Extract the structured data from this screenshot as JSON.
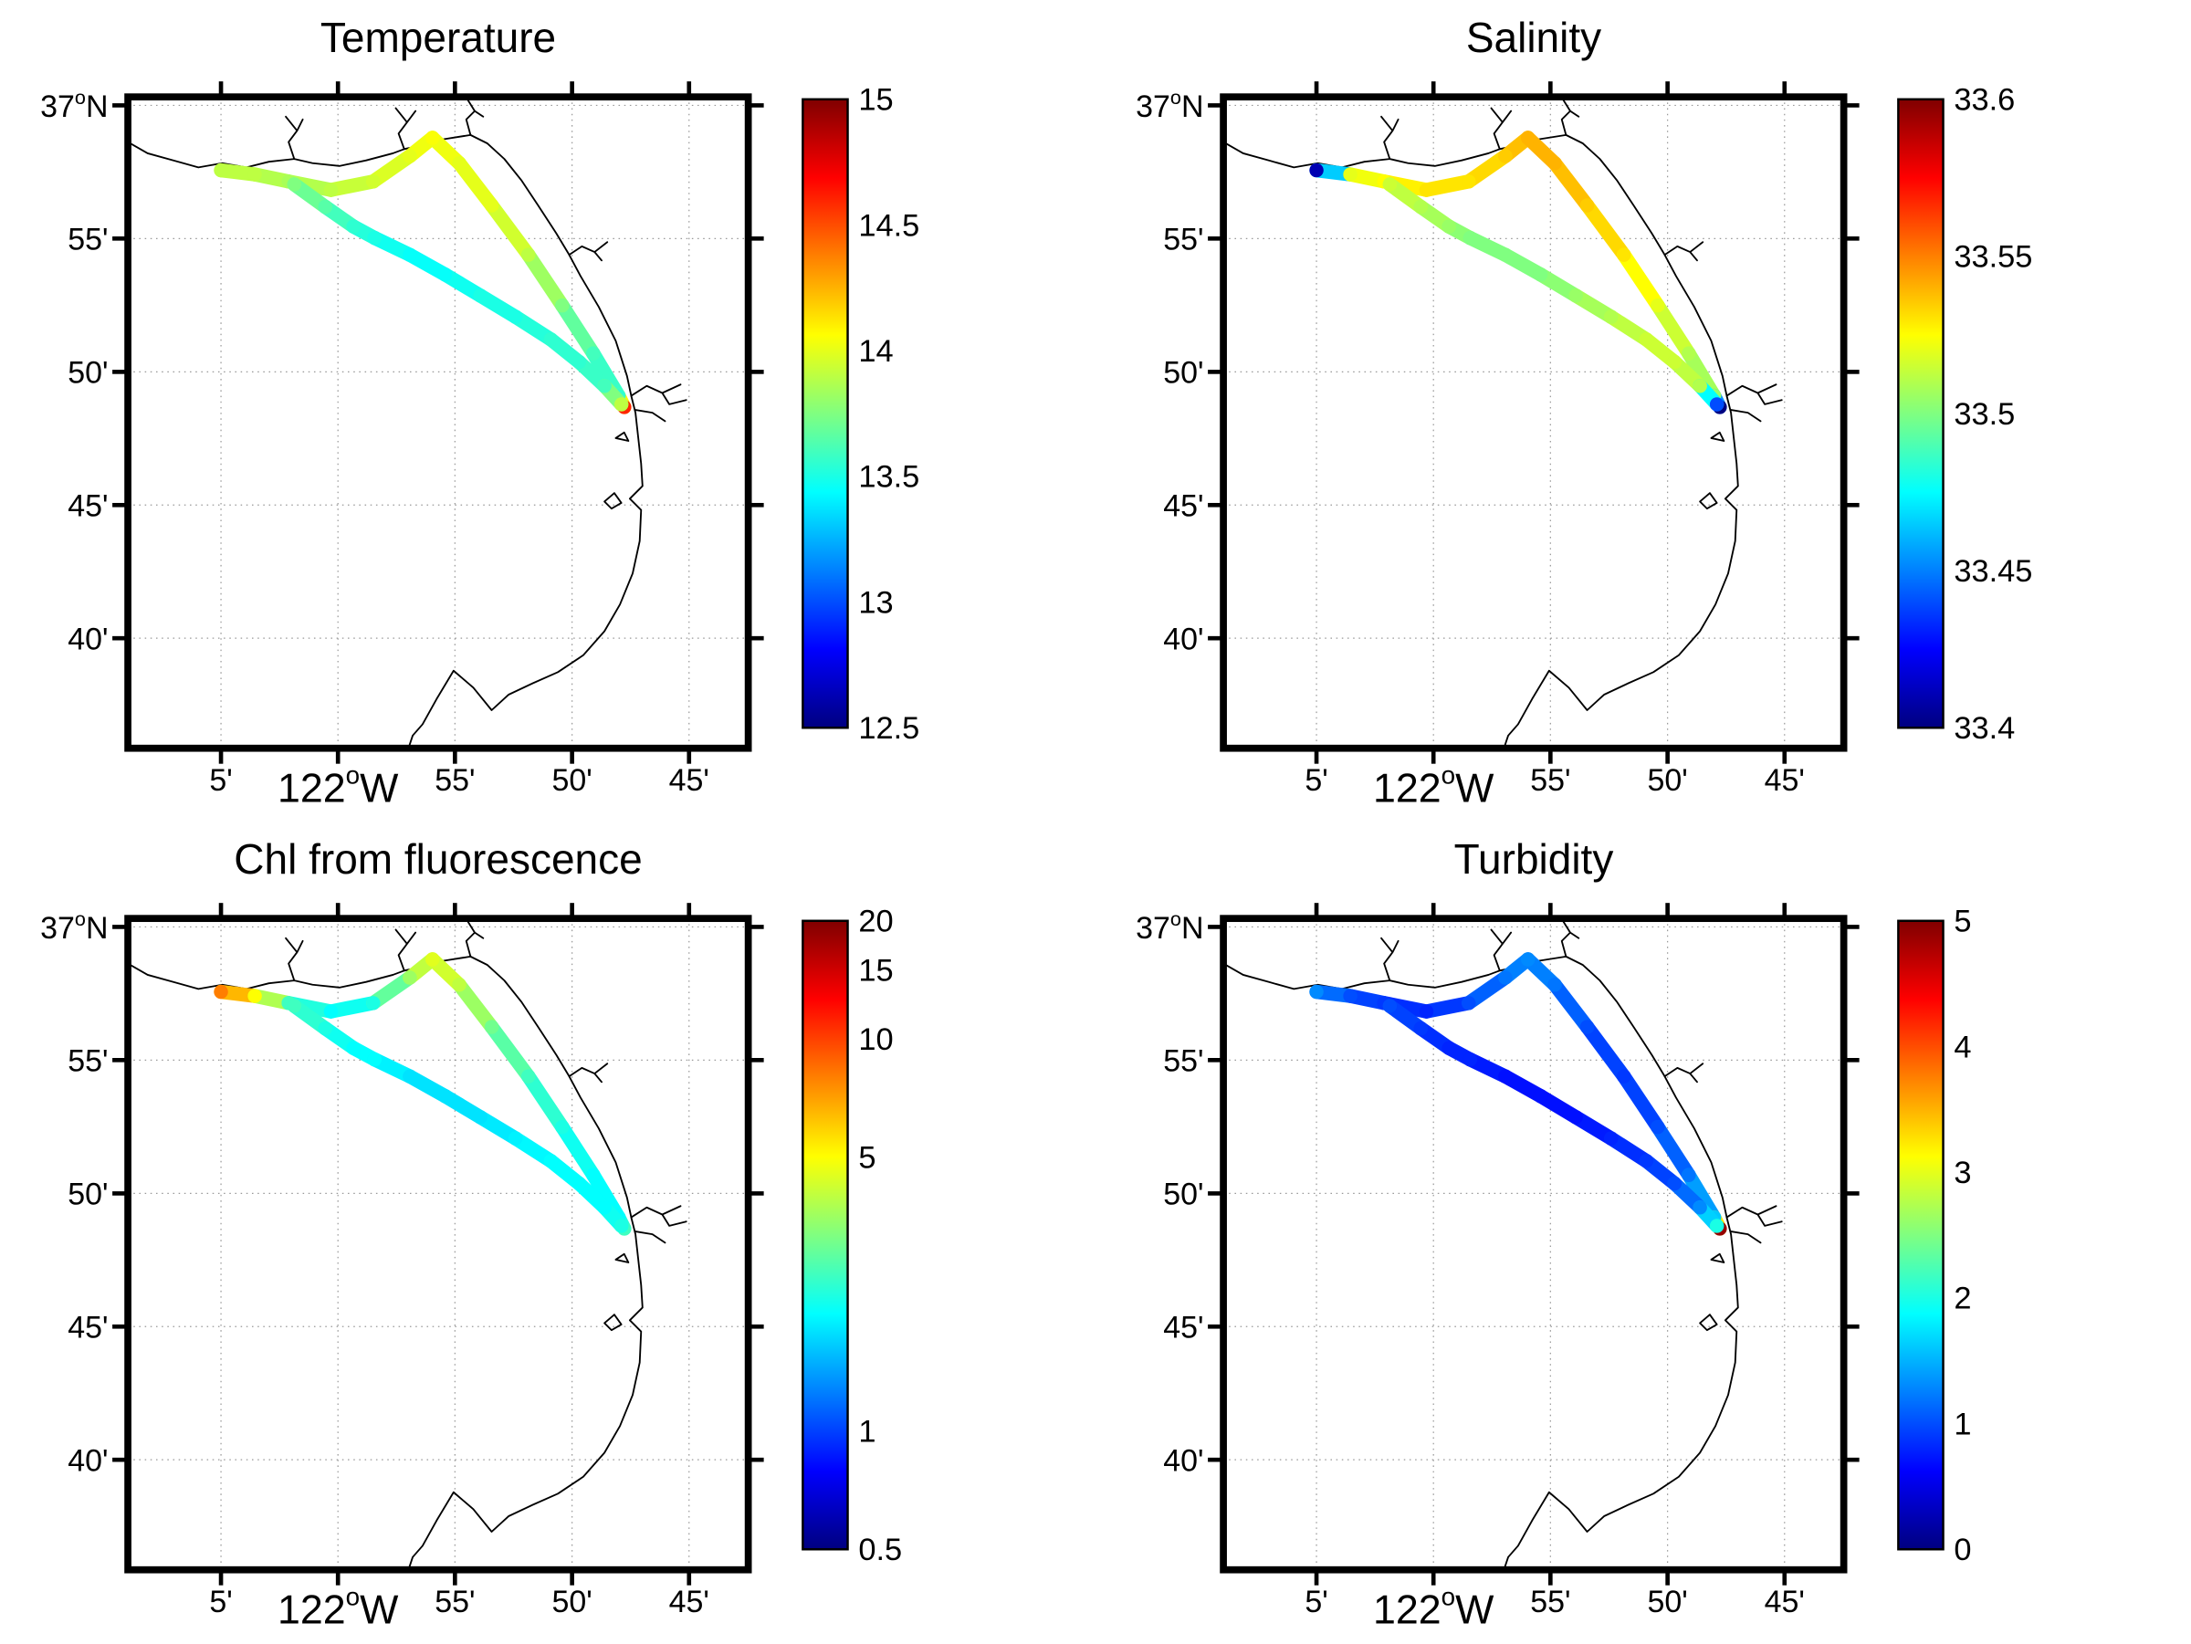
{
  "figure": {
    "background": "#ffffff"
  },
  "chart_data": {
    "type": "scatter",
    "layout": "2x2 geographic track panels (Monterey Bay survey, colored ship track with jet colormap colorbars)",
    "map_bounds": {
      "lon_min": -122.1496,
      "lon_max": -121.7078,
      "lat_min": 36.5979,
      "lat_max": 37.0053
    },
    "grid": true,
    "axes": {
      "x": [
        {
          "v": -122.0833,
          "label": "5'"
        },
        {
          "v": -122.0,
          "p": "122",
          "sup": "o",
          "s": "W"
        },
        {
          "v": -121.9167,
          "label": "55'"
        },
        {
          "v": -121.8333,
          "label": "50'"
        },
        {
          "v": -121.75,
          "label": "45'"
        }
      ],
      "y": [
        {
          "v": 37.0,
          "p": "37",
          "sup": "o",
          "s": "N"
        },
        {
          "v": 36.9167,
          "label": "55'"
        },
        {
          "v": 36.8333,
          "label": "50'"
        },
        {
          "v": 36.75,
          "label": "45'"
        },
        {
          "v": 36.6667,
          "label": "40'"
        }
      ]
    },
    "track": {
      "legs": [
        {
          "name": "north-leg",
          "points": [
            [
              -122.0833,
              36.9594
            ],
            [
              -122.0592,
              36.9568
            ],
            [
              -122.0351,
              36.9524
            ],
            [
              -122.005,
              36.9471
            ],
            [
              -121.9749,
              36.9524
            ],
            [
              -121.9488,
              36.9683
            ],
            [
              -121.9327,
              36.9797
            ],
            [
              -121.9136,
              36.9638
            ],
            [
              -121.8905,
              36.9374
            ],
            [
              -121.8644,
              36.9065
            ],
            [
              -121.8403,
              36.8748
            ],
            [
              -121.8182,
              36.8448
            ],
            [
              -121.8001,
              36.8183
            ],
            [
              -121.7961,
              36.8113
            ]
          ]
        },
        {
          "name": "diagonal-leg",
          "points": [
            [
              -122.0311,
              36.9506
            ],
            [
              -122.009,
              36.9365
            ],
            [
              -121.9889,
              36.9242
            ],
            [
              -121.9739,
              36.9171
            ],
            [
              -121.9488,
              36.9065
            ],
            [
              -121.9237,
              36.8942
            ],
            [
              -121.8986,
              36.881
            ],
            [
              -121.8735,
              36.8677
            ],
            [
              -121.8484,
              36.8536
            ],
            [
              -121.8283,
              36.8395
            ],
            [
              -121.8102,
              36.8245
            ],
            [
              -121.7982,
              36.813
            ]
          ]
        }
      ]
    },
    "panels": [
      {
        "id": "temperature",
        "title": "Temperature",
        "scale": "linear",
        "vmin": 12.5,
        "vmax": 15,
        "colorbar_ticks": [
          {
            "v": 15,
            "label": "15"
          },
          {
            "v": 14.5,
            "label": "14.5"
          },
          {
            "v": 14,
            "label": "14"
          },
          {
            "v": 13.5,
            "label": "13.5"
          },
          {
            "v": 13,
            "label": "13"
          },
          {
            "v": 12.5,
            "label": "12.5"
          }
        ],
        "values_by_leg": [
          [
            13.9,
            13.9,
            13.85,
            13.9,
            13.95,
            14.0,
            14.05,
            14.0,
            14.0,
            13.9,
            13.75,
            13.6,
            13.55,
            14.6
          ],
          [
            13.75,
            13.65,
            13.55,
            13.5,
            13.45,
            13.45,
            13.5,
            13.5,
            13.55,
            13.55,
            13.6,
            13.9
          ]
        ]
      },
      {
        "id": "salinity",
        "title": "Salinity",
        "scale": "linear",
        "vmin": 33.4,
        "vmax": 33.6,
        "colorbar_ticks": [
          {
            "v": 33.6,
            "label": "33.6"
          },
          {
            "v": 33.55,
            "label": "33.55"
          },
          {
            "v": 33.5,
            "label": "33.5"
          },
          {
            "v": 33.45,
            "label": "33.45"
          },
          {
            "v": 33.4,
            "label": "33.4"
          }
        ],
        "values_by_leg": [
          [
            33.41,
            33.52,
            33.525,
            33.53,
            33.53,
            33.535,
            33.54,
            33.54,
            33.535,
            33.53,
            33.52,
            33.51,
            33.505,
            33.4
          ],
          [
            33.515,
            33.51,
            33.505,
            33.5,
            33.5,
            33.5,
            33.505,
            33.51,
            33.515,
            33.515,
            33.51,
            33.44
          ]
        ]
      },
      {
        "id": "chl",
        "title": "Chl from fluorescence",
        "scale": "log",
        "vmin": 0.5,
        "vmax": 20,
        "colorbar_ticks": [
          {
            "v": 20,
            "label": "20"
          },
          {
            "v": 15,
            "label": "15"
          },
          {
            "v": 10,
            "label": "10"
          },
          {
            "v": 5,
            "label": "5"
          },
          {
            "v": 1,
            "label": "1"
          },
          {
            "v": 0.5,
            "label": "0.5"
          }
        ],
        "values_by_leg": [
          [
            8.0,
            5.0,
            2.5,
            2.0,
            2.2,
            3.5,
            4.5,
            4.0,
            3.0,
            2.5,
            2.2,
            2.0,
            2.0,
            2.5
          ],
          [
            2.5,
            2.2,
            2.0,
            2.0,
            1.8,
            1.8,
            1.8,
            1.9,
            2.0,
            2.0,
            2.0,
            2.2
          ]
        ]
      },
      {
        "id": "turbidity",
        "title": "Turbidity",
        "scale": "linear",
        "vmin": 0,
        "vmax": 5,
        "colorbar_ticks": [
          {
            "v": 5,
            "label": "5"
          },
          {
            "v": 4,
            "label": "4"
          },
          {
            "v": 3,
            "label": "3"
          },
          {
            "v": 2,
            "label": "2"
          },
          {
            "v": 1,
            "label": "1"
          },
          {
            "v": 0,
            "label": "0"
          }
        ],
        "values_by_leg": [
          [
            1.3,
            1.0,
            0.9,
            0.8,
            1.0,
            1.2,
            1.3,
            1.2,
            1.0,
            0.9,
            1.0,
            1.2,
            1.6,
            4.9
          ],
          [
            1.0,
            0.9,
            0.8,
            0.8,
            0.7,
            0.7,
            0.7,
            0.8,
            0.9,
            1.0,
            1.3,
            2.0
          ]
        ]
      }
    ]
  }
}
